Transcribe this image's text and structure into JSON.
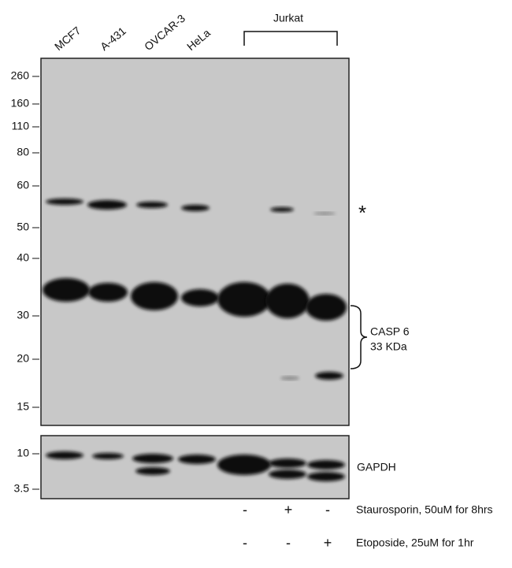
{
  "lanes": [
    "MCF7",
    "A-431",
    "OVCAR-3",
    "HeLa"
  ],
  "group_label": "Jurkat",
  "markers_main": [
    "260",
    "160",
    "110",
    "80",
    "60",
    "50",
    "40",
    "30",
    "20",
    "15"
  ],
  "markers_gapdh": [
    "10",
    "3.5"
  ],
  "asterisk": "*",
  "target": [
    "CASP 6",
    "33 KDa"
  ],
  "loading_control": "GAPDH",
  "treatments": [
    {
      "label": "Staurosporin, 50uM for 8hrs",
      "signs": [
        "-",
        "+",
        "-"
      ]
    },
    {
      "label": "Etoposide, 25uM for 1hr",
      "signs": [
        "-",
        "-",
        "+"
      ]
    }
  ]
}
